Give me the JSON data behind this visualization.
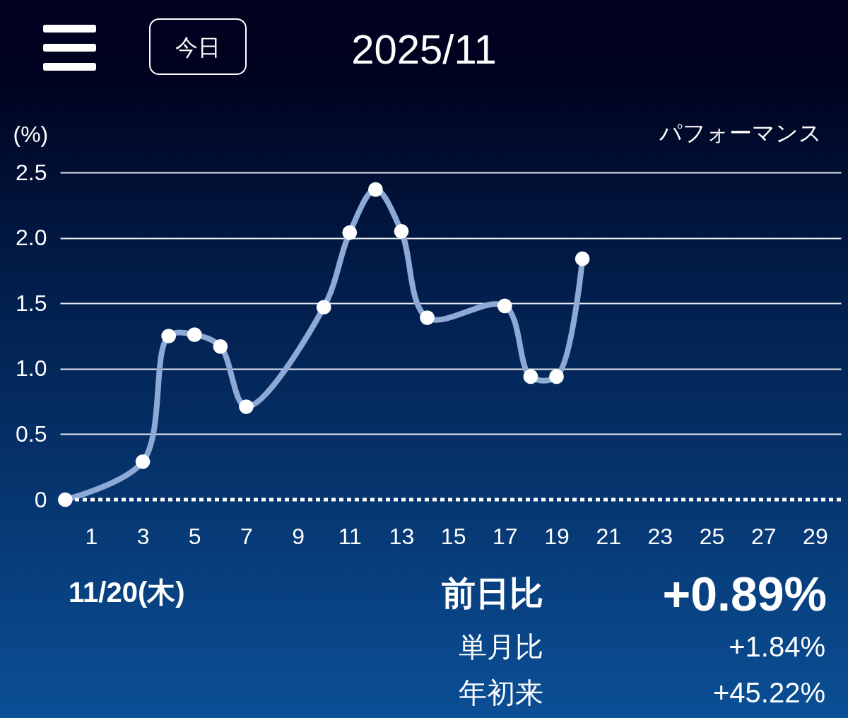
{
  "chart_data": {
    "type": "line",
    "title": "2025/11",
    "ylabel": "(%)",
    "annotations": [
      "今日",
      "パフォーマンス",
      "11/20(木)",
      "前日比",
      "+0.89%",
      "単月比",
      "+1.84%",
      "年初来",
      "+45.22%"
    ],
    "x": [
      0,
      3,
      4,
      5,
      6,
      7,
      10,
      11,
      12,
      13,
      14,
      17,
      18,
      19,
      20
    ],
    "series": [
      {
        "color": "#8daad6",
        "values": [
          0,
          0.29,
          1.25,
          1.26,
          1.17,
          0.71,
          1.47,
          2.04,
          2.37,
          2.05,
          1.39,
          1.48,
          0.94,
          0.94,
          1.84
        ]
      }
    ],
    "xlim": [
      -0.2,
      30
    ],
    "xticks": [
      1,
      3,
      5,
      7,
      9,
      11,
      13,
      15,
      17,
      19,
      21,
      23,
      25,
      27,
      29
    ],
    "ylim": [
      0,
      2.5
    ],
    "yticks": [
      0,
      0.5,
      {
        "value": 1,
        "label": "1.0"
      },
      1.5,
      {
        "value": 2,
        "label": "2.0"
      },
      2.5
    ],
    "grid": "y",
    "ref_lines": [
      {
        "axis": "y",
        "value": 0,
        "color": "#ffffff",
        "line_style": "dotted"
      }
    ],
    "marker": "circle",
    "line_style": "solid"
  }
}
